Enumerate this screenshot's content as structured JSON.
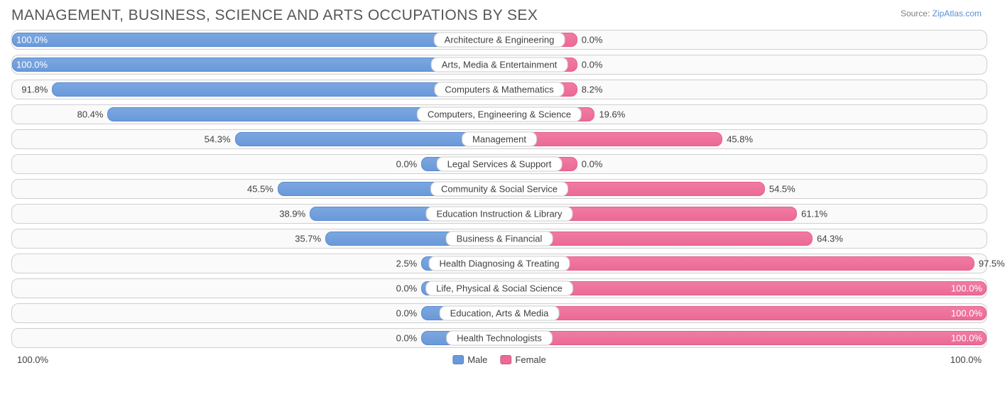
{
  "title": "MANAGEMENT, BUSINESS, SCIENCE AND ARTS OCCUPATIONS BY SEX",
  "source_prefix": "Source: ",
  "source_link": "ZipAtlas.com",
  "chart": {
    "type": "pyramid-bar",
    "male_color": "#6a99da",
    "female_color": "#ec6a95",
    "track_bg": "#fafafa",
    "track_border": "#cfcfcf",
    "value_fontsize": 13,
    "category_fontsize": 13,
    "title_fontsize": 21,
    "min_bar_pct": 16,
    "axis_left": "100.0%",
    "axis_right": "100.0%",
    "legend": [
      {
        "key": "male",
        "label": "Male"
      },
      {
        "key": "female",
        "label": "Female"
      }
    ],
    "rows": [
      {
        "category": "Architecture & Engineering",
        "male_pct": 100.0,
        "female_pct": 0.0,
        "male_label": "100.0%",
        "female_label": "0.0%"
      },
      {
        "category": "Arts, Media & Entertainment",
        "male_pct": 100.0,
        "female_pct": 0.0,
        "male_label": "100.0%",
        "female_label": "0.0%"
      },
      {
        "category": "Computers & Mathematics",
        "male_pct": 91.8,
        "female_pct": 8.2,
        "male_label": "91.8%",
        "female_label": "8.2%"
      },
      {
        "category": "Computers, Engineering & Science",
        "male_pct": 80.4,
        "female_pct": 19.6,
        "male_label": "80.4%",
        "female_label": "19.6%"
      },
      {
        "category": "Management",
        "male_pct": 54.3,
        "female_pct": 45.8,
        "male_label": "54.3%",
        "female_label": "45.8%"
      },
      {
        "category": "Legal Services & Support",
        "male_pct": 0.0,
        "female_pct": 0.0,
        "male_label": "0.0%",
        "female_label": "0.0%"
      },
      {
        "category": "Community & Social Service",
        "male_pct": 45.5,
        "female_pct": 54.5,
        "male_label": "45.5%",
        "female_label": "54.5%"
      },
      {
        "category": "Education Instruction & Library",
        "male_pct": 38.9,
        "female_pct": 61.1,
        "male_label": "38.9%",
        "female_label": "61.1%"
      },
      {
        "category": "Business & Financial",
        "male_pct": 35.7,
        "female_pct": 64.3,
        "male_label": "35.7%",
        "female_label": "64.3%"
      },
      {
        "category": "Health Diagnosing & Treating",
        "male_pct": 2.5,
        "female_pct": 97.5,
        "male_label": "2.5%",
        "female_label": "97.5%"
      },
      {
        "category": "Life, Physical & Social Science",
        "male_pct": 0.0,
        "female_pct": 100.0,
        "male_label": "0.0%",
        "female_label": "100.0%"
      },
      {
        "category": "Education, Arts & Media",
        "male_pct": 0.0,
        "female_pct": 100.0,
        "male_label": "0.0%",
        "female_label": "100.0%"
      },
      {
        "category": "Health Technologists",
        "male_pct": 0.0,
        "female_pct": 100.0,
        "male_label": "0.0%",
        "female_label": "100.0%"
      }
    ]
  }
}
